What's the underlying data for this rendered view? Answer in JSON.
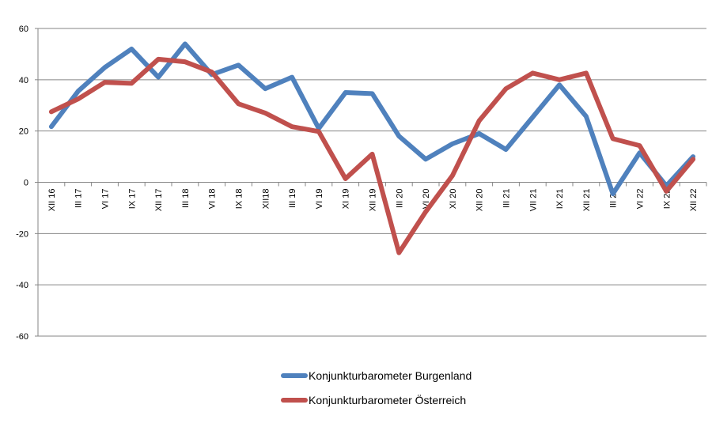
{
  "chart_data": {
    "type": "line",
    "title": "",
    "xlabel": "",
    "ylabel": "",
    "ylim": [
      -60,
      60
    ],
    "yticks": [
      60,
      40,
      20,
      0,
      -20,
      -40,
      -60
    ],
    "grid": true,
    "legend_position": "bottom",
    "categories": [
      "XII 16",
      "III 17",
      "VI 17",
      "IX 17",
      "XII 17",
      "III 18",
      "VI 18",
      "IX 18",
      "XII18",
      "III 19",
      "VI 19",
      "XI 19",
      "XII 19",
      "III 20",
      "VI 20",
      "XI 20",
      "XII 20",
      "III 21",
      "VII 21",
      "IX 21",
      "XII 21",
      "III 22",
      "VI 22",
      "IX 22",
      "XII 22"
    ],
    "series": [
      {
        "name": "Konjunkturbarometer Burgenland",
        "color": "#4F81BD",
        "values": [
          21.7,
          35.5,
          44.8,
          52,
          41,
          54,
          42,
          45.7,
          36.5,
          41,
          21,
          35,
          34.6,
          18,
          9,
          15,
          19,
          12.8,
          25.4,
          38,
          25.7,
          -4.5,
          11.5,
          -1.4,
          10
        ]
      },
      {
        "name": "Konjunkturbarometer Österreich",
        "color": "#C0504D",
        "values": [
          27.5,
          32.5,
          39,
          38.6,
          48,
          47,
          43,
          30.6,
          27,
          21.7,
          19.8,
          1.4,
          11,
          -27.5,
          -11.5,
          2.6,
          24,
          36.5,
          42.6,
          40,
          42.6,
          17,
          14.3,
          -3.5,
          9
        ]
      }
    ]
  }
}
